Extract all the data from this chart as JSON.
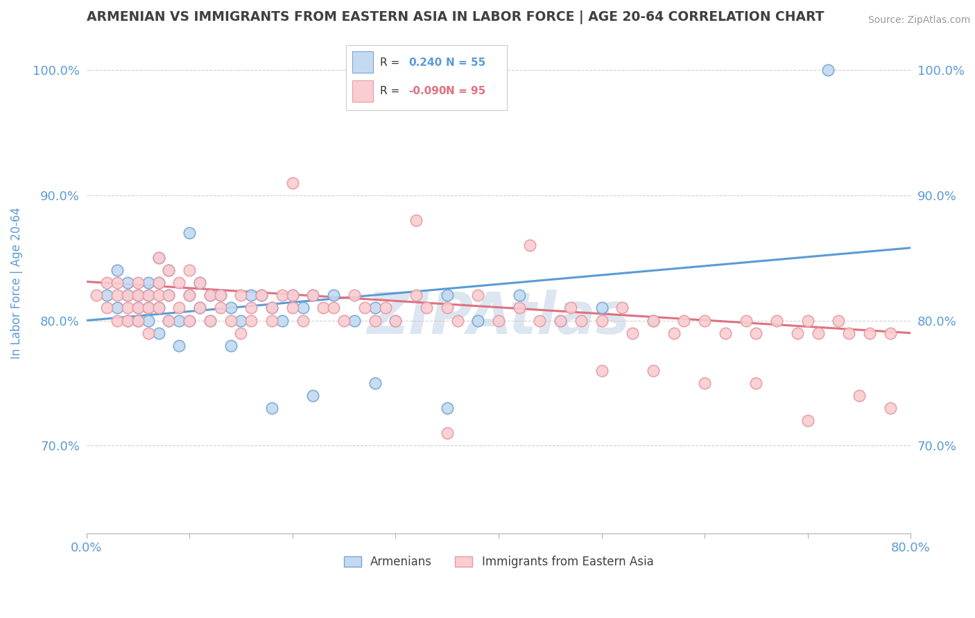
{
  "title": "ARMENIAN VS IMMIGRANTS FROM EASTERN ASIA IN LABOR FORCE | AGE 20-64 CORRELATION CHART",
  "source": "Source: ZipAtlas.com",
  "ylabel": "In Labor Force | Age 20-64",
  "xlim": [
    0.0,
    0.8
  ],
  "ylim": [
    0.63,
    1.03
  ],
  "xticks": [
    0.0,
    0.1,
    0.2,
    0.3,
    0.4,
    0.5,
    0.6,
    0.7,
    0.8
  ],
  "xtick_labels": [
    "0.0%",
    "",
    "",
    "",
    "",
    "",
    "",
    "",
    "80.0%"
  ],
  "yticks": [
    0.7,
    0.8,
    0.9,
    1.0
  ],
  "ytick_labels": [
    "70.0%",
    "80.0%",
    "90.0%",
    "100.0%"
  ],
  "R_blue": 0.24,
  "N_blue": 55,
  "R_pink": -0.09,
  "N_pink": 95,
  "blue_fill": "#c5d9f0",
  "blue_edge": "#6fa8d6",
  "pink_fill": "#f9cdd1",
  "pink_edge": "#e89aa2",
  "blue_line": "#5b9bd5",
  "pink_line": "#e07080",
  "title_color": "#404040",
  "axis_color": "#5b9bd5",
  "grid_color": "#d0d0d0",
  "watermark_color": "#dce6f0",
  "bg_color": "#ffffff",
  "legend_label_blue": "Armenians",
  "legend_label_pink": "Immigrants from Eastern Asia",
  "blue_x": [
    0.02,
    0.03,
    0.03,
    0.04,
    0.04,
    0.04,
    0.05,
    0.05,
    0.05,
    0.06,
    0.06,
    0.06,
    0.06,
    0.07,
    0.07,
    0.07,
    0.07,
    0.08,
    0.08,
    0.08,
    0.09,
    0.09,
    0.1,
    0.1,
    0.1,
    0.11,
    0.11,
    0.12,
    0.12,
    0.13,
    0.14,
    0.14,
    0.15,
    0.16,
    0.17,
    0.18,
    0.19,
    0.2,
    0.21,
    0.22,
    0.24,
    0.26,
    0.28,
    0.3,
    0.35,
    0.38,
    0.42,
    0.46,
    0.5,
    0.55,
    0.18,
    0.22,
    0.28,
    0.35,
    0.72
  ],
  "blue_y": [
    0.82,
    0.84,
    0.81,
    0.82,
    0.8,
    0.83,
    0.81,
    0.8,
    0.82,
    0.83,
    0.8,
    0.81,
    0.82,
    0.83,
    0.81,
    0.85,
    0.79,
    0.8,
    0.82,
    0.84,
    0.78,
    0.8,
    0.8,
    0.82,
    0.87,
    0.81,
    0.83,
    0.8,
    0.82,
    0.82,
    0.78,
    0.81,
    0.8,
    0.82,
    0.82,
    0.81,
    0.8,
    0.82,
    0.81,
    0.82,
    0.82,
    0.8,
    0.81,
    0.8,
    0.82,
    0.8,
    0.82,
    0.8,
    0.81,
    0.8,
    0.73,
    0.74,
    0.75,
    0.73,
    1.0
  ],
  "pink_x": [
    0.01,
    0.02,
    0.02,
    0.03,
    0.03,
    0.03,
    0.04,
    0.04,
    0.04,
    0.05,
    0.05,
    0.05,
    0.05,
    0.06,
    0.06,
    0.06,
    0.07,
    0.07,
    0.07,
    0.07,
    0.08,
    0.08,
    0.08,
    0.09,
    0.09,
    0.1,
    0.1,
    0.1,
    0.11,
    0.11,
    0.12,
    0.12,
    0.13,
    0.13,
    0.14,
    0.15,
    0.15,
    0.16,
    0.16,
    0.17,
    0.18,
    0.18,
    0.19,
    0.2,
    0.2,
    0.21,
    0.22,
    0.23,
    0.24,
    0.25,
    0.26,
    0.27,
    0.28,
    0.29,
    0.3,
    0.32,
    0.33,
    0.35,
    0.36,
    0.38,
    0.4,
    0.42,
    0.44,
    0.46,
    0.47,
    0.48,
    0.5,
    0.52,
    0.53,
    0.55,
    0.57,
    0.58,
    0.6,
    0.62,
    0.64,
    0.65,
    0.67,
    0.69,
    0.7,
    0.71,
    0.73,
    0.74,
    0.76,
    0.78,
    0.35,
    0.2,
    0.32,
    0.43,
    0.5,
    0.55,
    0.6,
    0.65,
    0.7,
    0.75,
    0.78
  ],
  "pink_y": [
    0.82,
    0.83,
    0.81,
    0.82,
    0.8,
    0.83,
    0.81,
    0.8,
    0.82,
    0.83,
    0.8,
    0.81,
    0.82,
    0.82,
    0.79,
    0.81,
    0.83,
    0.82,
    0.81,
    0.85,
    0.8,
    0.82,
    0.84,
    0.81,
    0.83,
    0.8,
    0.82,
    0.84,
    0.81,
    0.83,
    0.8,
    0.82,
    0.82,
    0.81,
    0.8,
    0.82,
    0.79,
    0.81,
    0.8,
    0.82,
    0.81,
    0.8,
    0.82,
    0.82,
    0.81,
    0.8,
    0.82,
    0.81,
    0.81,
    0.8,
    0.82,
    0.81,
    0.8,
    0.81,
    0.8,
    0.82,
    0.81,
    0.81,
    0.8,
    0.82,
    0.8,
    0.81,
    0.8,
    0.8,
    0.81,
    0.8,
    0.8,
    0.81,
    0.79,
    0.8,
    0.79,
    0.8,
    0.8,
    0.79,
    0.8,
    0.79,
    0.8,
    0.79,
    0.8,
    0.79,
    0.8,
    0.79,
    0.79,
    0.79,
    0.71,
    0.91,
    0.88,
    0.86,
    0.76,
    0.76,
    0.75,
    0.75,
    0.72,
    0.74,
    0.73
  ]
}
